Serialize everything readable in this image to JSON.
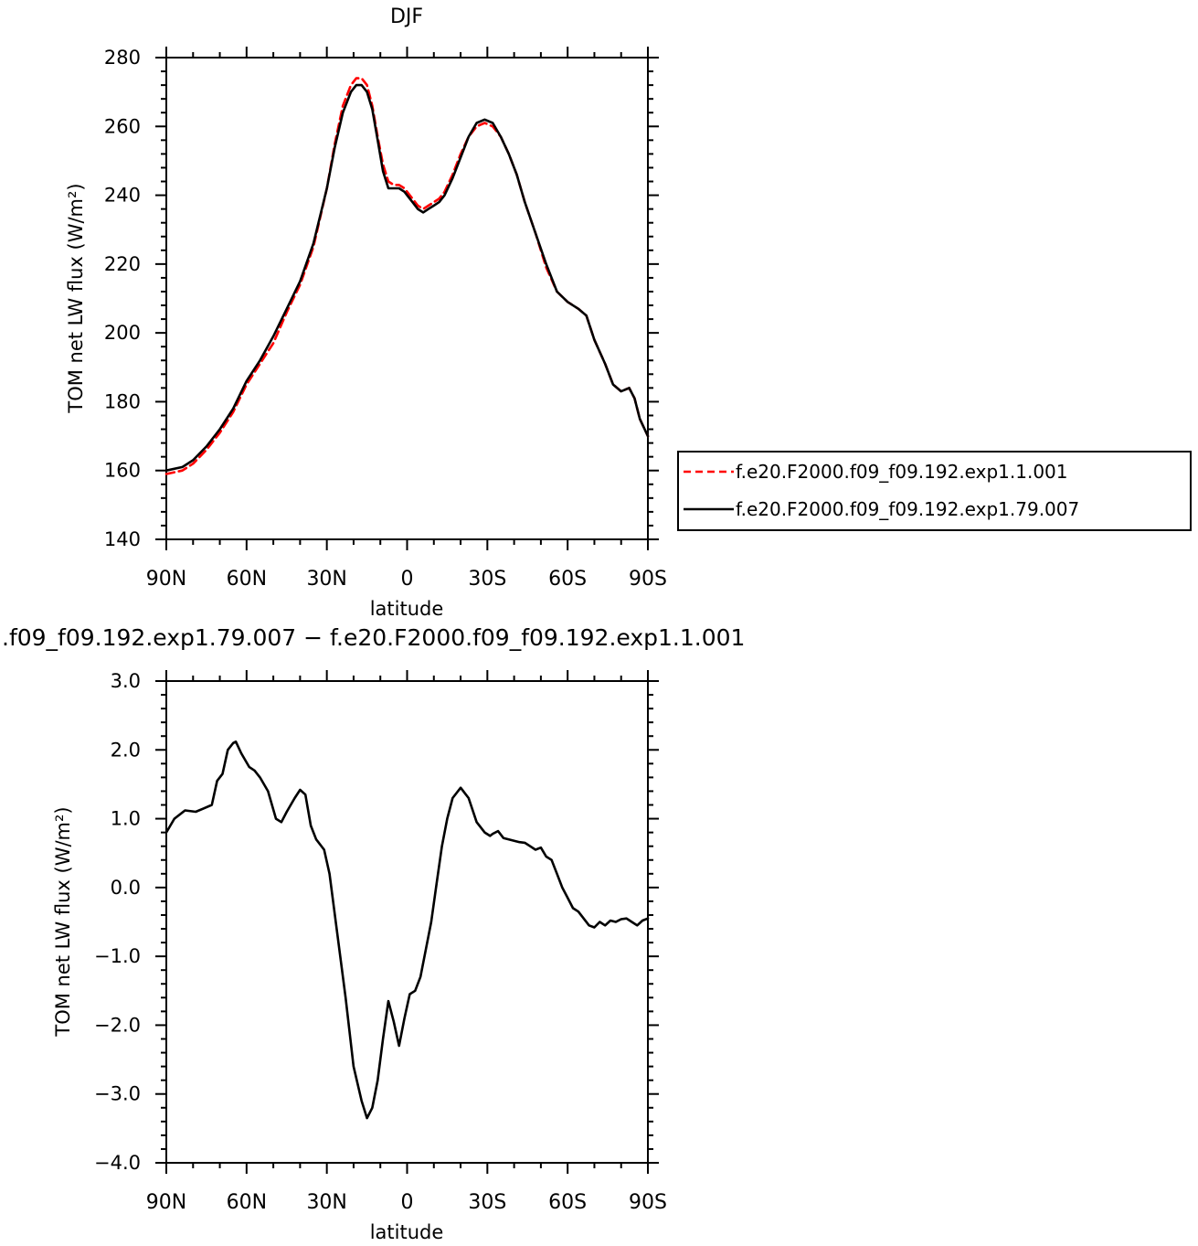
{
  "chart_data": [
    {
      "type": "line",
      "title": "DJF",
      "xlabel": "latitude",
      "ylabel": "TOM net LW flux (W/m²)",
      "ylim": [
        140,
        280
      ],
      "yticks": [
        "140",
        "160",
        "180",
        "200",
        "220",
        "240",
        "260",
        "280"
      ],
      "xlim": [
        90,
        -90
      ],
      "xticks": [
        "90N",
        "60N",
        "30N",
        "0",
        "30S",
        "60S",
        "90S"
      ],
      "grid": false,
      "legend_position": "right",
      "series": [
        {
          "name": "f.e20.F2000.f09_f09.192.exp1.1.001",
          "color": "#ff0000",
          "dash": "dashed",
          "x": [
            90,
            84,
            80,
            75,
            70,
            65,
            60,
            55,
            50,
            45,
            40,
            35,
            30,
            27,
            24,
            21,
            19,
            17,
            15,
            13,
            11,
            9,
            7,
            5,
            3,
            1,
            0,
            -2,
            -4,
            -6,
            -8,
            -10,
            -12,
            -14,
            -17,
            -20,
            -23,
            -26,
            -29,
            -32,
            -35,
            -38,
            -41,
            -44,
            -48,
            -52,
            -56,
            -60,
            -64,
            -67,
            -70,
            -74,
            -77,
            -80,
            -83,
            -85,
            -87,
            -90
          ],
          "y": [
            159,
            160,
            162,
            166,
            171,
            177,
            185,
            191,
            197,
            206,
            214,
            225,
            242,
            255,
            266,
            272,
            274,
            274,
            272,
            266,
            257,
            249,
            244,
            243,
            243,
            242,
            241,
            239,
            237,
            236,
            237,
            238,
            239,
            241,
            246,
            252,
            257,
            260,
            261,
            260,
            257,
            252,
            246,
            238,
            229,
            219,
            212,
            209,
            207,
            205,
            198,
            191,
            185,
            183,
            184,
            181,
            175,
            170
          ]
        },
        {
          "name": "f.e20.F2000.f09_f09.192.exp1.79.007",
          "color": "#000000",
          "dash": "solid",
          "x": [
            90,
            84,
            80,
            75,
            70,
            65,
            60,
            55,
            50,
            45,
            40,
            35,
            30,
            27,
            24,
            21,
            19,
            17,
            15,
            13,
            11,
            9,
            7,
            5,
            3,
            1,
            0,
            -2,
            -4,
            -6,
            -8,
            -10,
            -12,
            -14,
            -17,
            -20,
            -23,
            -26,
            -29,
            -32,
            -35,
            -38,
            -41,
            -44,
            -48,
            -52,
            -56,
            -60,
            -64,
            -67,
            -70,
            -74,
            -77,
            -80,
            -83,
            -85,
            -87,
            -90
          ],
          "y": [
            160,
            161,
            163,
            167,
            172,
            178,
            186,
            192,
            199,
            207,
            215,
            226,
            242,
            254,
            264,
            270,
            272,
            272,
            270,
            265,
            256,
            247,
            242,
            242,
            242,
            241,
            240,
            238,
            236,
            235,
            236,
            237,
            238,
            240,
            245,
            251,
            257,
            261,
            262,
            261,
            257,
            252,
            246,
            238,
            229,
            220,
            212,
            209,
            207,
            205,
            198,
            191,
            185,
            183,
            184,
            181,
            175,
            170
          ]
        }
      ]
    },
    {
      "type": "line",
      "title": ".f09_f09.192.exp1.79.007 − f.e20.F2000.f09_f09.192.exp1.1.001",
      "xlabel": "latitude",
      "ylabel": "TOM net LW flux (W/m²)",
      "ylim": [
        -4,
        3
      ],
      "yticks": [
        "−4.0",
        "−3.0",
        "−2.0",
        "−1.0",
        "0.0",
        "1.0",
        "2.0",
        "3.0"
      ],
      "xlim": [
        90,
        -90
      ],
      "xticks": [
        "90N",
        "60N",
        "30N",
        "0",
        "30S",
        "60S",
        "90S"
      ],
      "grid": false,
      "series": [
        {
          "color": "#000000",
          "dash": "solid",
          "x": [
            90,
            87,
            83,
            79,
            76,
            73,
            71,
            69,
            67,
            65,
            64,
            62,
            59,
            57,
            55,
            52,
            49,
            47,
            45,
            42,
            40,
            38,
            36,
            34,
            31,
            29,
            26,
            23,
            20,
            17,
            15,
            13,
            11,
            10,
            9,
            7,
            5,
            3,
            1,
            -1,
            -3,
            -5,
            -7,
            -9,
            -11,
            -13,
            -15,
            -17,
            -20,
            -23,
            -26,
            -29,
            -31,
            -32,
            -34,
            -36,
            -38,
            -40,
            -42,
            -44,
            -46,
            -48,
            -50,
            -52,
            -54,
            -56,
            -58,
            -60,
            -62,
            -64,
            -66,
            -68,
            -70,
            -72,
            -74,
            -76,
            -78,
            -80,
            -82,
            -84,
            -86,
            -88,
            -90
          ],
          "y": [
            0.8,
            1.0,
            1.12,
            1.1,
            1.15,
            1.2,
            1.55,
            1.65,
            2.0,
            2.1,
            2.12,
            1.95,
            1.75,
            1.7,
            1.6,
            1.4,
            1.0,
            0.95,
            1.1,
            1.3,
            1.42,
            1.35,
            0.9,
            0.7,
            0.55,
            0.2,
            -0.7,
            -1.6,
            -2.6,
            -3.1,
            -3.35,
            -3.2,
            -2.8,
            -2.5,
            -2.2,
            -1.65,
            -1.95,
            -2.3,
            -1.9,
            -1.55,
            -1.5,
            -1.3,
            -0.9,
            -0.5,
            0.05,
            0.6,
            1.0,
            1.3,
            1.45,
            1.3,
            0.95,
            0.8,
            0.75,
            0.78,
            0.82,
            0.72,
            0.7,
            0.68,
            0.66,
            0.65,
            0.6,
            0.55,
            0.58,
            0.45,
            0.4,
            0.2,
            0.0,
            -0.15,
            -0.3,
            -0.35,
            -0.45,
            -0.55,
            -0.58,
            -0.5,
            -0.55,
            -0.48,
            -0.5,
            -0.46,
            -0.45,
            -0.5,
            -0.55,
            -0.48,
            -0.45
          ]
        }
      ]
    }
  ]
}
